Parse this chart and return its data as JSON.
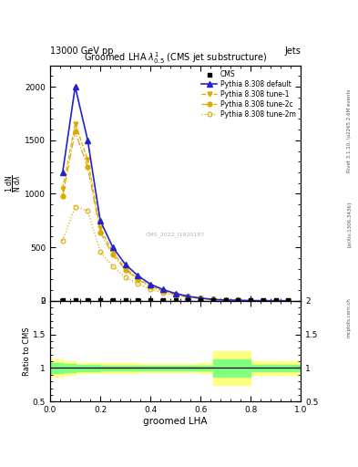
{
  "title": "Groomed LHA $\\lambda^{1}_{0.5}$ (CMS jet substructure)",
  "header_left": "13000 GeV pp",
  "header_right": "Jets",
  "xlabel": "groomed LHA",
  "ylabel_ratio": "Ratio to CMS",
  "watermark": "CMS_2022_I1920187",
  "rivet_label": "Rivet 3.1.10, \\u2265 2.6M events",
  "arxiv_label": "[arXiv:1306.3436]",
  "mcplots_label": "mcplots.cern.ch",
  "x_values": [
    0.05,
    0.1,
    0.15,
    0.2,
    0.25,
    0.3,
    0.35,
    0.4,
    0.45,
    0.5,
    0.55,
    0.6,
    0.65,
    0.7,
    0.75,
    0.8,
    0.85,
    0.9,
    0.95
  ],
  "pythia_default": [
    1200,
    2000,
    1500,
    750,
    500,
    340,
    235,
    155,
    105,
    68,
    42,
    25,
    13,
    7,
    3.5,
    1.8,
    0.9,
    0.4,
    0.15
  ],
  "pythia_tune1": [
    1050,
    1650,
    1320,
    680,
    455,
    305,
    210,
    138,
    92,
    60,
    37,
    22,
    11,
    5.5,
    2.8,
    1.4,
    0.7,
    0.3,
    0.1
  ],
  "pythia_tune2c": [
    980,
    1580,
    1250,
    640,
    430,
    290,
    200,
    132,
    88,
    57,
    35,
    21,
    10,
    5.0,
    2.5,
    1.2,
    0.6,
    0.25,
    0.1
  ],
  "pythia_tune2m": [
    560,
    880,
    840,
    460,
    320,
    220,
    160,
    108,
    74,
    50,
    32,
    19,
    9.5,
    4.5,
    2.2,
    1.1,
    0.55,
    0.22,
    0.08
  ],
  "cms_x": [
    0.05,
    0.1,
    0.15,
    0.2,
    0.25,
    0.3,
    0.35,
    0.4,
    0.45,
    0.5,
    0.55,
    0.6,
    0.65,
    0.7,
    0.75,
    0.8,
    0.85,
    0.9,
    0.95
  ],
  "cms_y": [
    0,
    0,
    0,
    0,
    0,
    0,
    0,
    0,
    0,
    0,
    0,
    0,
    0,
    0,
    0,
    0,
    0,
    0,
    0
  ],
  "ratio_x_edges": [
    0.0,
    0.05,
    0.1,
    0.15,
    0.2,
    0.25,
    0.3,
    0.35,
    0.4,
    0.45,
    0.5,
    0.55,
    0.6,
    0.65,
    0.7,
    0.75,
    0.8,
    0.85,
    0.9,
    0.95,
    1.0
  ],
  "ratio_yellow_lo": [
    0.87,
    0.9,
    0.92,
    0.92,
    0.93,
    0.93,
    0.93,
    0.94,
    0.94,
    0.94,
    0.94,
    0.94,
    0.93,
    0.75,
    0.75,
    0.75,
    0.9,
    0.9,
    0.9,
    0.9
  ],
  "ratio_yellow_hi": [
    1.13,
    1.1,
    1.08,
    1.08,
    1.07,
    1.07,
    1.07,
    1.06,
    1.06,
    1.06,
    1.06,
    1.06,
    1.07,
    1.25,
    1.25,
    1.25,
    1.1,
    1.1,
    1.1,
    1.1
  ],
  "ratio_green_lo": [
    0.92,
    0.94,
    0.95,
    0.95,
    0.96,
    0.96,
    0.96,
    0.97,
    0.97,
    0.97,
    0.97,
    0.97,
    0.96,
    0.87,
    0.87,
    0.87,
    0.95,
    0.95,
    0.95,
    0.95
  ],
  "ratio_green_hi": [
    1.08,
    1.06,
    1.05,
    1.05,
    1.04,
    1.04,
    1.04,
    1.03,
    1.03,
    1.03,
    1.03,
    1.03,
    1.04,
    1.13,
    1.13,
    1.13,
    1.05,
    1.05,
    1.05,
    1.05
  ],
  "ylim_main": [
    0,
    2200
  ],
  "ylim_ratio": [
    0.5,
    2.0
  ],
  "xlim": [
    0,
    1.0
  ],
  "color_default": "#2222cc",
  "color_tune1": "#ddaa00",
  "color_tune2c": "#ddaa00",
  "color_tune2m": "#ddaa00",
  "color_cms": "#000000",
  "yticks_main": [
    0,
    500,
    1000,
    1500,
    2000
  ],
  "ytick_labels_main": [
    "0",
    "500",
    "1000",
    "1500",
    "2000"
  ],
  "yticks_ratio": [
    0.5,
    1.0,
    1.5,
    2.0
  ],
  "ytick_labels_ratio": [
    "0.5",
    "1",
    "1.5",
    "2"
  ]
}
